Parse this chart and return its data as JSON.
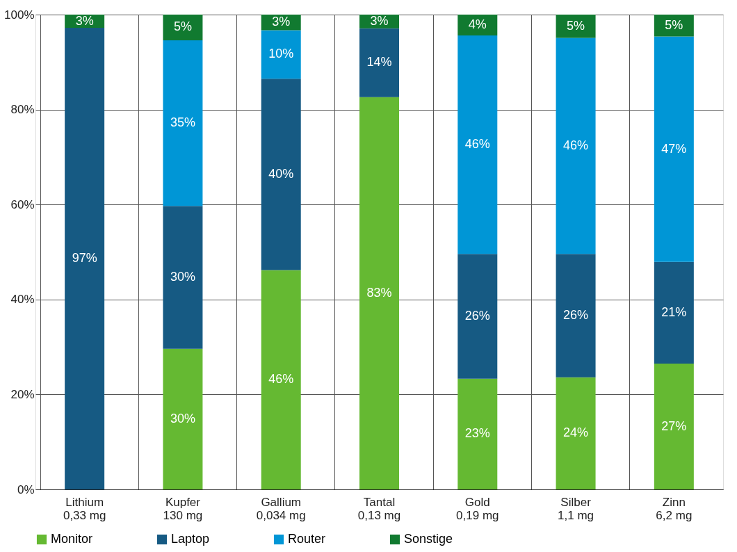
{
  "chart_data": {
    "type": "bar",
    "stacked": true,
    "categories": [
      "Lithium\n0,33 mg",
      "Kupfer\n130 mg",
      "Gallium\n0,034 mg",
      "Tantal\n0,13 mg",
      "Gold\n0,19 mg",
      "Silber\n1,1 mg",
      "Zinn\n6,2 mg"
    ],
    "series": [
      {
        "name": "Monitor",
        "color": "#65b932",
        "values": [
          0,
          29.6,
          46.2,
          82.6,
          23.3,
          23.6,
          26.5
        ],
        "value_labels": [
          null,
          "30%",
          "46%",
          "83%",
          "23%",
          "24%",
          "27%"
        ]
      },
      {
        "name": "Laptop",
        "color": "#165a83",
        "values": [
          97.2,
          30.1,
          40.3,
          14.5,
          26.3,
          26.0,
          21.4
        ],
        "value_labels": [
          "97%",
          "30%",
          "40%",
          "14%",
          "26%",
          "26%",
          "21%"
        ]
      },
      {
        "name": "Router",
        "color": "#0096d6",
        "values": [
          0,
          34.9,
          10.2,
          0,
          46.0,
          45.5,
          47.5
        ],
        "value_labels": [
          null,
          "35%",
          "10%",
          null,
          "46%",
          "46%",
          "47%"
        ]
      },
      {
        "name": "Sonstige",
        "color": "#117a30",
        "values": [
          2.8,
          5.4,
          3.3,
          2.9,
          4.4,
          4.9,
          4.6
        ],
        "value_labels": [
          "3%",
          "5%",
          "3%",
          "3%",
          "4%",
          "5%",
          "5%"
        ]
      }
    ],
    "ylim": [
      0,
      100
    ],
    "yticks": [
      {
        "value": 0,
        "label": "0%"
      },
      {
        "value": 20,
        "label": "20%"
      },
      {
        "value": 40,
        "label": "40%"
      },
      {
        "value": 60,
        "label": "60%"
      },
      {
        "value": 80,
        "label": "80%"
      },
      {
        "value": 100,
        "label": "100%"
      }
    ],
    "grid": true,
    "legend": "bottom"
  }
}
